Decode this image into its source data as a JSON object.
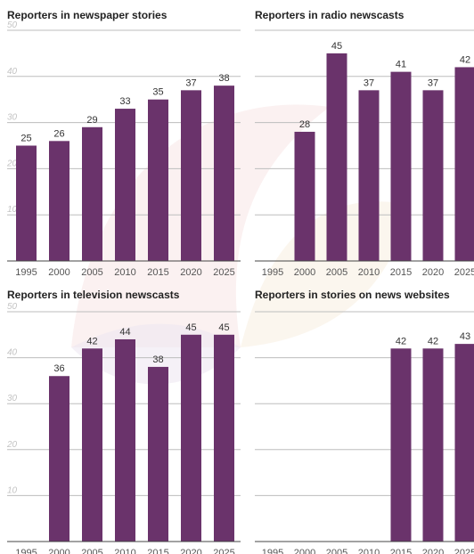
{
  "colors": {
    "bar": "#6a336b",
    "gridline": "#bdbdbd",
    "baseline": "#444444"
  },
  "chart_data": [
    {
      "type": "bar",
      "title": "Reporters in newspaper stories",
      "categories": [
        "1995",
        "2000",
        "2005",
        "2010",
        "2015",
        "2020",
        "2025"
      ],
      "values": [
        25,
        26,
        29,
        33,
        35,
        37,
        38
      ],
      "data_labels": [
        "25",
        "26",
        "29",
        "33",
        "35",
        "37",
        "38"
      ],
      "ylim": [
        0,
        50
      ],
      "yticks": [
        "10",
        "20",
        "30",
        "40",
        "50"
      ],
      "show_y_labels": true,
      "grid": true
    },
    {
      "type": "bar",
      "title": "Reporters in radio newscasts",
      "categories": [
        "1995",
        "2000",
        "2005",
        "2010",
        "2015",
        "2020",
        "2025"
      ],
      "values": [
        null,
        28,
        45,
        37,
        41,
        37,
        42
      ],
      "data_labels": [
        "",
        "28",
        "45",
        "37",
        "41",
        "37",
        "42"
      ],
      "ylim": [
        0,
        50
      ],
      "yticks": [
        "10",
        "20",
        "30",
        "40",
        "50"
      ],
      "show_y_labels": false,
      "grid": true
    },
    {
      "type": "bar",
      "title": "Reporters in television newscasts",
      "categories": [
        "1995",
        "2000",
        "2005",
        "2010",
        "2015",
        "2020",
        "2025"
      ],
      "values": [
        null,
        36,
        42,
        44,
        38,
        45,
        45
      ],
      "data_labels": [
        "",
        "36",
        "42",
        "44",
        "38",
        "45",
        "45"
      ],
      "ylim": [
        0,
        50
      ],
      "yticks": [
        "10",
        "20",
        "30",
        "40",
        "50"
      ],
      "show_y_labels": true,
      "grid": true
    },
    {
      "type": "bar",
      "title": "Reporters in stories on news websites",
      "categories": [
        "1995",
        "2000",
        "2005",
        "2010",
        "2015",
        "2020",
        "2025"
      ],
      "values": [
        null,
        null,
        null,
        null,
        42,
        42,
        43
      ],
      "data_labels": [
        "",
        "",
        "",
        "",
        "42",
        "42",
        "43"
      ],
      "ylim": [
        0,
        50
      ],
      "yticks": [
        "10",
        "20",
        "30",
        "40",
        "50"
      ],
      "show_y_labels": false,
      "grid": true
    }
  ]
}
